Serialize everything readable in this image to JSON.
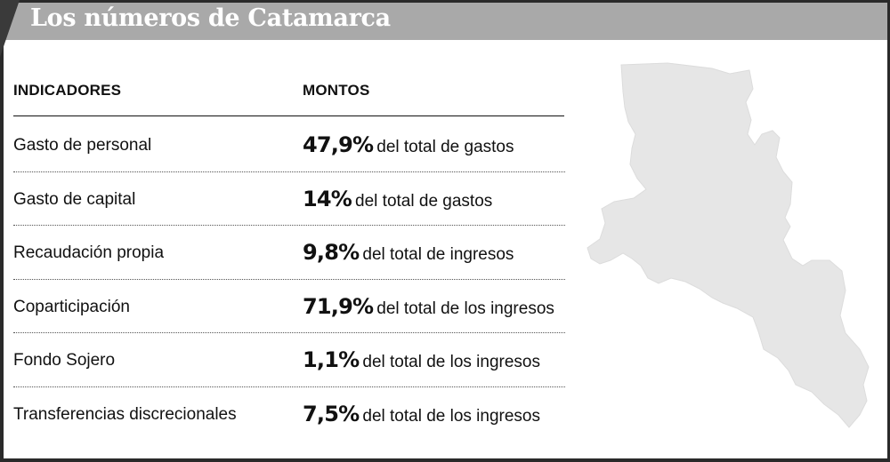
{
  "header": {
    "title": "Los números de Catamarca"
  },
  "columns": {
    "indicators": "INDICADORES",
    "amounts": "MONTOS"
  },
  "rows": [
    {
      "indicator": "Gasto de personal",
      "value": "47,9%",
      "description": "del total de gastos"
    },
    {
      "indicator": "Gasto de capital",
      "value": "14%",
      "description": "del total de gastos"
    },
    {
      "indicator": "Recaudación propia",
      "value": "9,8%",
      "description": "del total de ingresos"
    },
    {
      "indicator": "Coparticipación",
      "value": "71,9%",
      "description": "del total de los ingresos"
    },
    {
      "indicator": "Fondo Sojero",
      "value": "1,1%",
      "description": "del total de los ingresos"
    },
    {
      "indicator": "Transferencias discrecionales",
      "value": "7,5%",
      "description": "del total de los ingresos"
    }
  ],
  "colors": {
    "header_bg": "#a9a9a9",
    "frame": "#2a2a2a",
    "map_fill": "#e6e6e6"
  }
}
